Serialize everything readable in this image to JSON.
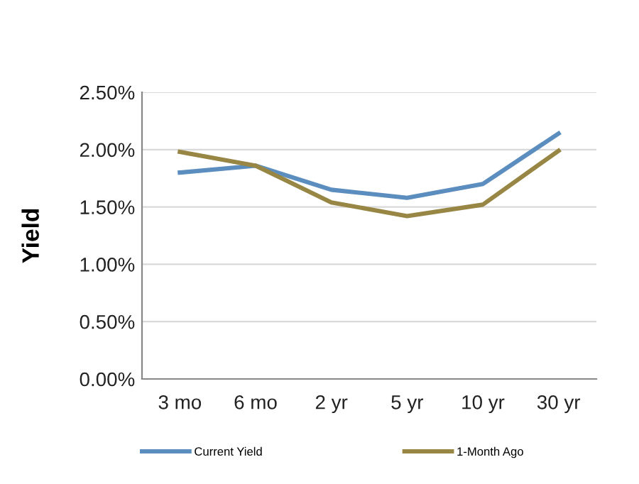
{
  "chart_data": {
    "type": "line",
    "ylabel": "Yield",
    "categories": [
      "3 mo",
      "6 mo",
      "2 yr",
      "5 yr",
      "10 yr",
      "30 yr"
    ],
    "series": [
      {
        "name": "Current Yield",
        "color": "#5b8dbf",
        "values": [
          1.8,
          1.86,
          1.65,
          1.58,
          1.7,
          2.14
        ]
      },
      {
        "name": "1-Month Ago",
        "color": "#988645",
        "values": [
          1.98,
          1.86,
          1.54,
          1.42,
          1.52,
          1.99
        ]
      }
    ],
    "ylim": [
      0,
      2.5
    ],
    "yticks": [
      {
        "value": 0,
        "label": "0.00%"
      },
      {
        "value": 0.5,
        "label": "0.50%"
      },
      {
        "value": 1.0,
        "label": "1.00%"
      },
      {
        "value": 1.5,
        "label": "1.50%"
      },
      {
        "value": 2.0,
        "label": "2.00%"
      },
      {
        "value": 2.5,
        "label": "2.50%"
      }
    ],
    "grid": "y",
    "legend": "bottom",
    "marker": "none",
    "line_style": "solid"
  }
}
